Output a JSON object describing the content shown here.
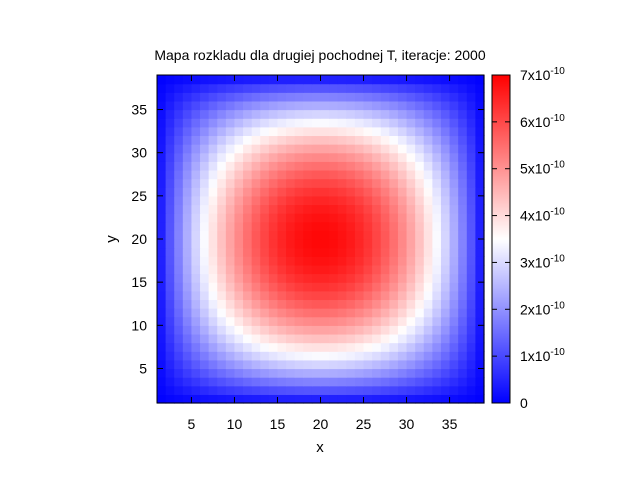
{
  "chart_data": {
    "type": "heatmap",
    "title": "Mapa rozkladu dla drugiej pochodnej T, iteracje: 2000",
    "xlabel": "x",
    "ylabel": "y",
    "xlim": [
      1,
      39
    ],
    "ylim": [
      1,
      39
    ],
    "x_ticks": [
      "5",
      "10",
      "15",
      "20",
      "25",
      "30",
      "35"
    ],
    "y_ticks": [
      "5",
      "10",
      "15",
      "20",
      "25",
      "30",
      "35"
    ],
    "grid": {
      "nx": 38,
      "ny": 38,
      "peak": {
        "x": 20.5,
        "y": 22.5,
        "value": 6.9e-10
      },
      "boundary_value": 0.0,
      "description": "smooth positive bump, maximum near center (x≈20, y≈22), decaying to ~0 at all borders"
    },
    "colorbar": {
      "range": [
        0,
        7e-10
      ],
      "labels": [
        {
          "base": "0",
          "exp": ""
        },
        {
          "base": "1x10",
          "exp": "-10"
        },
        {
          "base": "2x10",
          "exp": "-10"
        },
        {
          "base": "3x10",
          "exp": "-10"
        },
        {
          "base": "4x10",
          "exp": "-10"
        },
        {
          "base": "5x10",
          "exp": "-10"
        },
        {
          "base": "6x10",
          "exp": "-10"
        },
        {
          "base": "7x10",
          "exp": "-10"
        }
      ],
      "colors": {
        "low": "#0000ff",
        "mid": "#ffffff",
        "high": "#ff0000"
      },
      "mid_value": 3.5e-10
    }
  }
}
